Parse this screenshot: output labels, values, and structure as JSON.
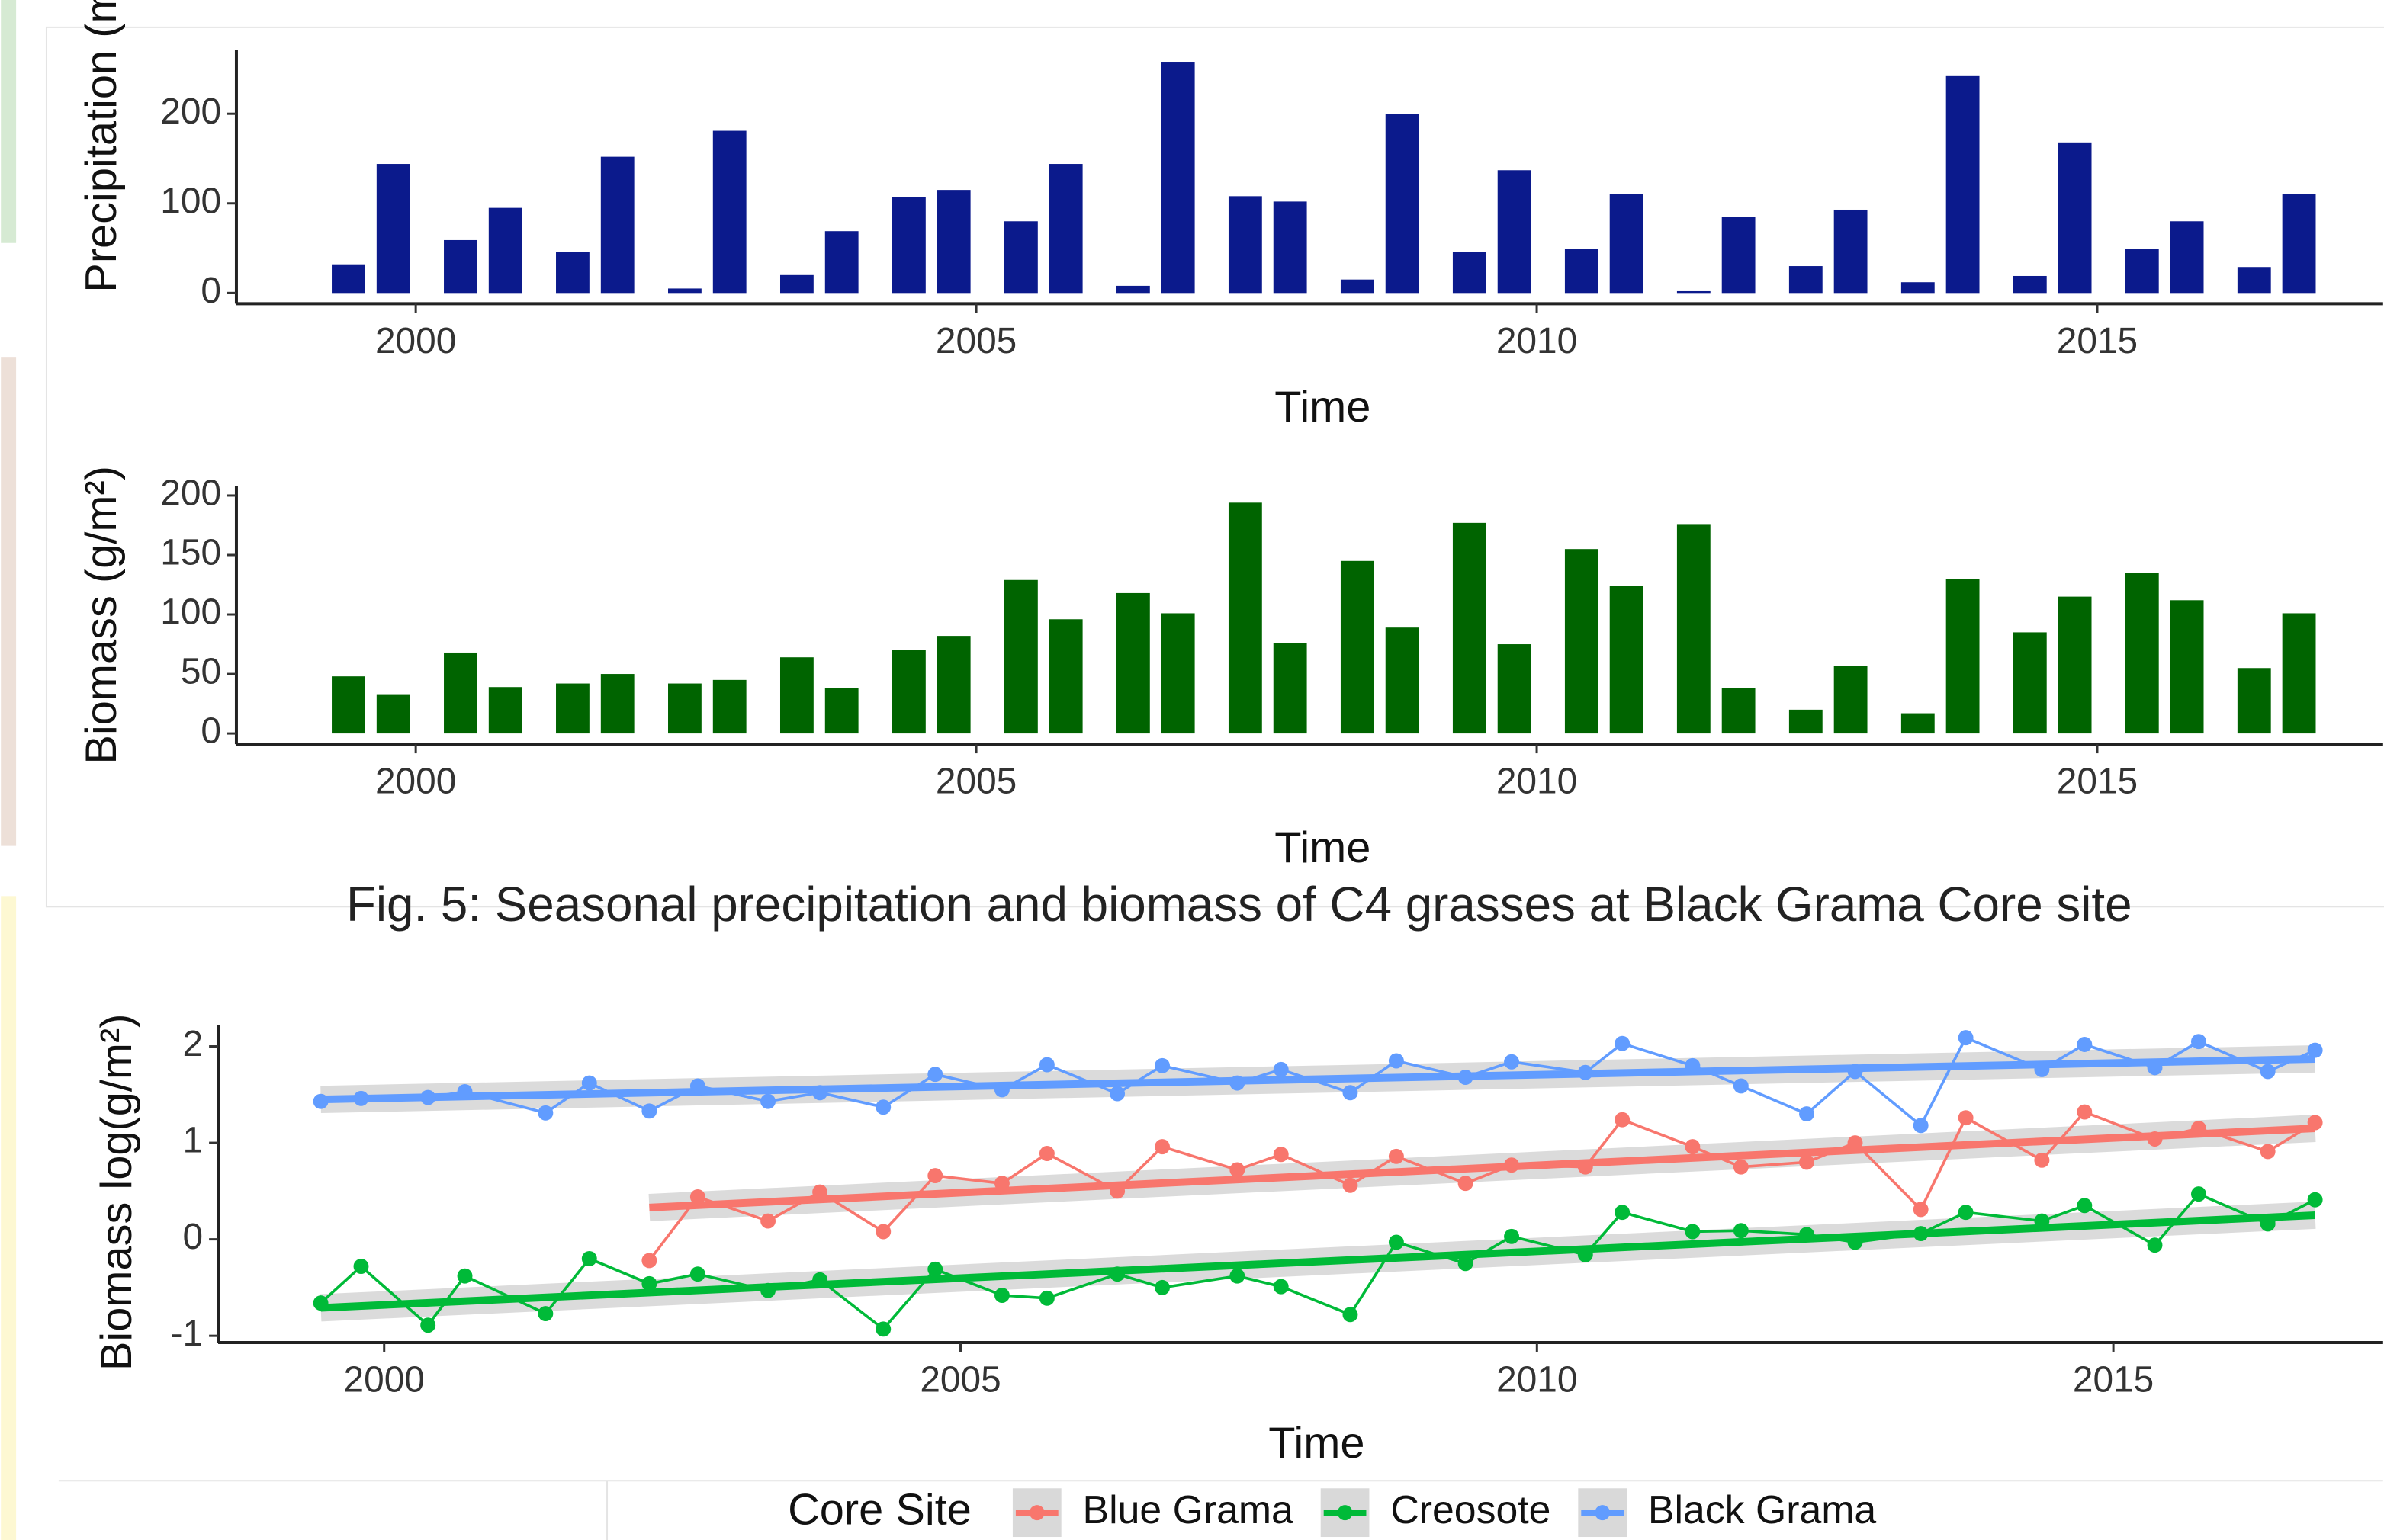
{
  "caption": "Fig. 5: Seasonal precipitation and biomass of C4 grasses at Black Grama Core site",
  "chart_data": [
    {
      "type": "bar",
      "xlabel": "Time",
      "ylabel": "Precipitation (mm)",
      "color": "#0b1a8c",
      "grid": false,
      "x": [
        1999.4,
        1999.8,
        2000.4,
        2000.8,
        2001.4,
        2001.8,
        2002.4,
        2002.8,
        2003.4,
        2003.8,
        2004.4,
        2004.8,
        2005.4,
        2005.8,
        2006.4,
        2006.8,
        2007.4,
        2007.8,
        2008.4,
        2008.8,
        2009.4,
        2009.8,
        2010.4,
        2010.8,
        2011.4,
        2011.8,
        2012.4,
        2012.8,
        2013.4,
        2013.8,
        2014.4,
        2014.8,
        2015.4,
        2015.8,
        2016.4,
        2016.8
      ],
      "values": [
        32,
        144,
        59,
        95,
        46,
        152,
        5,
        181,
        20,
        69,
        107,
        115,
        80,
        144,
        8,
        258,
        108,
        102,
        15,
        200,
        46,
        137,
        49,
        110,
        2,
        85,
        30,
        93,
        12,
        242,
        19,
        168,
        49,
        80,
        29,
        110
      ],
      "xlim": [
        1998.4,
        2017.55
      ],
      "xticks": [
        2000,
        2005,
        2010,
        2015
      ],
      "ylim": [
        -12,
        271
      ],
      "yticks": [
        0,
        100,
        200
      ]
    },
    {
      "type": "bar",
      "xlabel": "Time",
      "ylabel": "Biomass (g/m²)",
      "color": "#006400",
      "grid": false,
      "x": [
        1999.4,
        1999.8,
        2000.4,
        2000.8,
        2001.4,
        2001.8,
        2002.4,
        2002.8,
        2003.4,
        2003.8,
        2004.4,
        2004.8,
        2005.4,
        2005.8,
        2006.4,
        2006.8,
        2007.4,
        2007.8,
        2008.4,
        2008.8,
        2009.4,
        2009.8,
        2010.4,
        2010.8,
        2011.4,
        2011.8,
        2012.4,
        2012.8,
        2013.4,
        2013.8,
        2014.4,
        2014.8,
        2015.4,
        2015.8,
        2016.4,
        2016.8
      ],
      "values": [
        48,
        33,
        68,
        39,
        42,
        50,
        42,
        45,
        64,
        38,
        70,
        82,
        129,
        96,
        118,
        101,
        194,
        76,
        145,
        89,
        177,
        75,
        155,
        124,
        176,
        38,
        20,
        57,
        17,
        130,
        85,
        115,
        135,
        112,
        55,
        101
      ],
      "xlim": [
        1998.4,
        2017.55
      ],
      "xticks": [
        2000,
        2005,
        2010,
        2015
      ],
      "ylim": [
        -9,
        208
      ],
      "yticks": [
        0,
        50,
        100,
        150,
        200
      ]
    },
    {
      "type": "line",
      "xlabel": "Time",
      "ylabel": "Biomass log(g/m²)",
      "legend_title": "Core Site",
      "legend": "bottom",
      "grid": false,
      "x": [
        1999.45,
        1999.8,
        2000.38,
        2000.7,
        2001.4,
        2001.78,
        2002.3,
        2002.72,
        2003.33,
        2003.78,
        2004.33,
        2004.78,
        2005.36,
        2005.75,
        2006.36,
        2006.75,
        2007.4,
        2007.78,
        2008.38,
        2008.78,
        2009.38,
        2009.78,
        2010.42,
        2010.74,
        2011.35,
        2011.77,
        2012.34,
        2012.76,
        2013.33,
        2013.72,
        2014.38,
        2014.75,
        2015.36,
        2015.74,
        2016.34,
        2016.75
      ],
      "series": [
        {
          "name": "Blue Grama",
          "color": "#f8766d",
          "values": [
            null,
            null,
            null,
            null,
            null,
            null,
            -0.22,
            0.44,
            0.19,
            0.49,
            0.08,
            0.66,
            0.58,
            0.89,
            0.5,
            0.96,
            0.72,
            0.88,
            0.56,
            0.86,
            0.58,
            0.77,
            0.75,
            1.24,
            0.96,
            0.75,
            0.8,
            1.0,
            0.31,
            1.26,
            0.82,
            1.32,
            1.04,
            1.15,
            0.91,
            1.21
          ],
          "trend": {
            "x": [
              2002.3,
              2016.75
            ],
            "y": [
              0.33,
              1.15
            ]
          }
        },
        {
          "name": "Creosote",
          "color": "#00ba38",
          "values": [
            -0.66,
            -0.28,
            -0.89,
            -0.38,
            -0.77,
            -0.2,
            -0.46,
            -0.36,
            -0.53,
            -0.42,
            -0.93,
            -0.31,
            -0.58,
            -0.61,
            -0.36,
            -0.5,
            -0.38,
            -0.49,
            -0.78,
            -0.03,
            -0.25,
            0.03,
            -0.16,
            0.28,
            0.08,
            0.09,
            0.05,
            -0.03,
            0.06,
            0.28,
            0.19,
            0.35,
            -0.06,
            0.47,
            0.16,
            0.41
          ],
          "trend": {
            "x": [
              1999.45,
              2016.75
            ],
            "y": [
              -0.71,
              0.25
            ]
          }
        },
        {
          "name": "Black Grama",
          "color": "#619cff",
          "values": [
            1.43,
            1.46,
            1.47,
            1.53,
            1.31,
            1.62,
            1.33,
            1.59,
            1.43,
            1.52,
            1.37,
            1.71,
            1.55,
            1.81,
            1.51,
            1.8,
            1.62,
            1.76,
            1.52,
            1.85,
            1.68,
            1.84,
            1.73,
            2.03,
            1.8,
            1.59,
            1.3,
            1.74,
            1.18,
            2.09,
            1.76,
            2.02,
            1.78,
            2.05,
            1.74,
            1.96
          ],
          "trend": {
            "x": [
              1999.45,
              2016.75
            ],
            "y": [
              1.45,
              1.87
            ]
          }
        }
      ],
      "xlim": [
        1998.56,
        2017.34
      ],
      "xticks": [
        2000,
        2005,
        2010,
        2015
      ],
      "ylim": [
        -1.07,
        2.22
      ],
      "yticks": [
        -1,
        0,
        1,
        2
      ]
    }
  ]
}
